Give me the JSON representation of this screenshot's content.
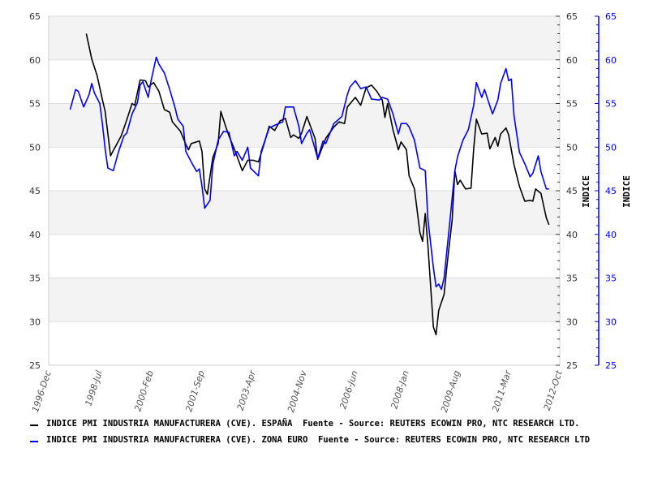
{
  "chart_data": {
    "type": "line",
    "x_ticks": [
      "1996-Dec",
      "1998-Jul",
      "2000-Feb",
      "2001-Sep",
      "2003-Apr",
      "2004-Nov",
      "2006-Jun",
      "2008-Jan",
      "2009-Aug",
      "2011-Mar",
      "2012-Oct"
    ],
    "xlim": [
      "1996-12",
      "2012-10"
    ],
    "ylim": [
      25,
      65
    ],
    "y_ticks": [
      25,
      30,
      35,
      40,
      45,
      50,
      55,
      60,
      65
    ],
    "ylabel_left_axis": "INDICE",
    "ylabel_right_axis": "INDICE",
    "grid": true,
    "legend_position": "bottom",
    "series": [
      {
        "name": "INDICE PMI INDUSTRIA MANUFACTURERA (CVE). ESPAÑA  Fuente - Source: REUTERS ECOWIN PRO, NTC RESEARCH LTD.",
        "color": "#000000",
        "axis": "left",
        "points": [
          [
            "1998-02",
            63.0
          ],
          [
            "1998-04",
            60.1
          ],
          [
            "1998-06",
            58.2
          ],
          [
            "1998-08",
            55.4
          ],
          [
            "1998-09",
            54.1
          ],
          [
            "1998-11",
            49.0
          ],
          [
            "1998-12",
            49.6
          ],
          [
            "1999-03",
            51.3
          ],
          [
            "1999-05",
            53.1
          ],
          [
            "1999-07",
            55.0
          ],
          [
            "1999-08",
            54.8
          ],
          [
            "1999-10",
            57.7
          ],
          [
            "1999-12",
            57.6
          ],
          [
            "2000-01",
            56.9
          ],
          [
            "2000-03",
            57.4
          ],
          [
            "2000-05",
            56.4
          ],
          [
            "2000-07",
            54.3
          ],
          [
            "2000-09",
            54.0
          ],
          [
            "2000-10",
            52.9
          ],
          [
            "2001-01",
            51.8
          ],
          [
            "2001-03",
            50.3
          ],
          [
            "2001-04",
            49.7
          ],
          [
            "2001-05",
            50.4
          ],
          [
            "2001-08",
            50.7
          ],
          [
            "2001-09",
            49.5
          ],
          [
            "2001-10",
            45.2
          ],
          [
            "2001-11",
            44.6
          ],
          [
            "2002-01",
            48.8
          ],
          [
            "2002-03",
            50.4
          ],
          [
            "2002-04",
            54.1
          ],
          [
            "2002-06",
            52.2
          ],
          [
            "2002-07",
            51.3
          ],
          [
            "2002-09",
            49.8
          ],
          [
            "2002-12",
            47.3
          ],
          [
            "2003-02",
            48.5
          ],
          [
            "2003-04",
            48.5
          ],
          [
            "2003-06",
            48.3
          ],
          [
            "2003-08",
            50.3
          ],
          [
            "2003-10",
            52.4
          ],
          [
            "2003-12",
            51.9
          ],
          [
            "2004-02",
            53.0
          ],
          [
            "2004-04",
            53.3
          ],
          [
            "2004-06",
            51.1
          ],
          [
            "2004-07",
            51.4
          ],
          [
            "2004-09",
            51.0
          ],
          [
            "2004-10",
            51.6
          ],
          [
            "2004-12",
            53.5
          ],
          [
            "2005-03",
            51.0
          ],
          [
            "2005-04",
            48.6
          ],
          [
            "2005-07",
            51.0
          ],
          [
            "2005-10",
            52.3
          ],
          [
            "2005-12",
            52.9
          ],
          [
            "2006-02",
            52.7
          ],
          [
            "2006-03",
            54.6
          ],
          [
            "2006-06",
            55.7
          ],
          [
            "2006-08",
            54.8
          ],
          [
            "2006-10",
            56.8
          ],
          [
            "2006-12",
            57.1
          ],
          [
            "2007-02",
            56.4
          ],
          [
            "2007-04",
            55.4
          ],
          [
            "2007-05",
            53.4
          ],
          [
            "2007-06",
            55.0
          ],
          [
            "2007-08",
            52.0
          ],
          [
            "2007-10",
            49.7
          ],
          [
            "2007-11",
            50.6
          ],
          [
            "2008-01",
            49.7
          ],
          [
            "2008-02",
            46.7
          ],
          [
            "2008-04",
            45.2
          ],
          [
            "2008-06",
            40.2
          ],
          [
            "2008-07",
            39.2
          ],
          [
            "2008-08",
            42.4
          ],
          [
            "2008-09",
            38.7
          ],
          [
            "2008-11",
            29.4
          ],
          [
            "2008-12",
            28.5
          ],
          [
            "2009-01",
            31.3
          ],
          [
            "2009-03",
            33.1
          ],
          [
            "2009-04",
            36.2
          ],
          [
            "2009-06",
            41.7
          ],
          [
            "2009-07",
            47.3
          ],
          [
            "2009-08",
            45.7
          ],
          [
            "2009-09",
            46.2
          ],
          [
            "2009-11",
            45.2
          ],
          [
            "2010-01",
            45.3
          ],
          [
            "2010-02",
            49.8
          ],
          [
            "2010-03",
            53.2
          ],
          [
            "2010-05",
            51.5
          ],
          [
            "2010-07",
            51.6
          ],
          [
            "2010-08",
            49.8
          ],
          [
            "2010-10",
            51.1
          ],
          [
            "2010-11",
            50.1
          ],
          [
            "2010-12",
            51.5
          ],
          [
            "2011-02",
            52.2
          ],
          [
            "2011-03",
            51.4
          ],
          [
            "2011-05",
            48.0
          ],
          [
            "2011-07",
            45.5
          ],
          [
            "2011-09",
            43.8
          ],
          [
            "2011-11",
            43.9
          ],
          [
            "2011-12",
            43.8
          ],
          [
            "2012-01",
            45.2
          ],
          [
            "2012-03",
            44.7
          ],
          [
            "2012-04",
            43.3
          ],
          [
            "2012-05",
            41.9
          ],
          [
            "2012-06",
            41.1
          ]
        ]
      },
      {
        "name": "INDICE PMI INDUSTRIA MANUFACTURERA (CVE). ZONA EURO  Fuente - Source: REUTERS ECOWIN PRO, NTC RESEARCH LTD",
        "color": "#0000ff",
        "axis": "right",
        "points": [
          [
            "1997-08",
            54.3
          ],
          [
            "1997-10",
            56.6
          ],
          [
            "1997-11",
            56.4
          ],
          [
            "1998-01",
            54.6
          ],
          [
            "1998-03",
            56.0
          ],
          [
            "1998-04",
            57.3
          ],
          [
            "1998-05",
            56.2
          ],
          [
            "1998-07",
            55.0
          ],
          [
            "1998-08",
            52.6
          ],
          [
            "1998-09",
            49.8
          ],
          [
            "1998-10",
            47.6
          ],
          [
            "1998-12",
            47.3
          ],
          [
            "1999-02",
            49.5
          ],
          [
            "1999-04",
            51.3
          ],
          [
            "1999-05",
            51.6
          ],
          [
            "1999-07",
            53.8
          ],
          [
            "1999-09",
            55.1
          ],
          [
            "1999-10",
            57.1
          ],
          [
            "1999-11",
            57.5
          ],
          [
            "2000-01",
            55.7
          ],
          [
            "2000-02",
            57.5
          ],
          [
            "2000-04",
            60.3
          ],
          [
            "2000-05",
            59.5
          ],
          [
            "2000-07",
            58.5
          ],
          [
            "2000-09",
            56.6
          ],
          [
            "2000-11",
            54.5
          ],
          [
            "2000-12",
            53.2
          ],
          [
            "2001-02",
            52.4
          ],
          [
            "2001-03",
            49.5
          ],
          [
            "2001-05",
            48.3
          ],
          [
            "2001-07",
            47.2
          ],
          [
            "2001-08",
            47.5
          ],
          [
            "2001-09",
            45.5
          ],
          [
            "2001-10",
            43.0
          ],
          [
            "2001-12",
            43.9
          ],
          [
            "2002-01",
            48.0
          ],
          [
            "2002-03",
            50.8
          ],
          [
            "2002-05",
            51.8
          ],
          [
            "2002-07",
            51.7
          ],
          [
            "2002-09",
            49.0
          ],
          [
            "2002-10",
            49.5
          ],
          [
            "2002-12",
            48.5
          ],
          [
            "2003-02",
            50.0
          ],
          [
            "2003-03",
            47.6
          ],
          [
            "2003-06",
            46.7
          ],
          [
            "2003-07",
            49.5
          ],
          [
            "2003-10",
            52.2
          ],
          [
            "2003-12",
            52.5
          ],
          [
            "2004-03",
            52.9
          ],
          [
            "2004-04",
            54.6
          ],
          [
            "2004-06",
            54.6
          ],
          [
            "2004-07",
            54.6
          ],
          [
            "2004-09",
            52.4
          ],
          [
            "2004-10",
            50.4
          ],
          [
            "2004-12",
            51.6
          ],
          [
            "2005-01",
            52.0
          ],
          [
            "2005-04",
            48.7
          ],
          [
            "2005-06",
            50.7
          ],
          [
            "2005-07",
            50.4
          ],
          [
            "2005-10",
            52.7
          ],
          [
            "2006-01",
            53.5
          ],
          [
            "2006-03",
            56.0
          ],
          [
            "2006-04",
            56.9
          ],
          [
            "2006-06",
            57.6
          ],
          [
            "2006-08",
            56.7
          ],
          [
            "2006-10",
            56.9
          ],
          [
            "2006-12",
            55.5
          ],
          [
            "2007-03",
            55.4
          ],
          [
            "2007-04",
            55.7
          ],
          [
            "2007-06",
            55.5
          ],
          [
            "2007-08",
            53.8
          ],
          [
            "2007-10",
            51.5
          ],
          [
            "2007-11",
            52.7
          ],
          [
            "2008-01",
            52.7
          ],
          [
            "2008-02",
            52.3
          ],
          [
            "2008-04",
            50.8
          ],
          [
            "2008-06",
            47.6
          ],
          [
            "2008-08",
            47.3
          ],
          [
            "2008-09",
            41.7
          ],
          [
            "2008-11",
            36.2
          ],
          [
            "2008-12",
            34.0
          ],
          [
            "2009-01",
            34.3
          ],
          [
            "2009-02",
            33.7
          ],
          [
            "2009-03",
            35.0
          ],
          [
            "2009-05",
            41.1
          ],
          [
            "2009-07",
            47.3
          ],
          [
            "2009-08",
            48.9
          ],
          [
            "2009-10",
            50.8
          ],
          [
            "2009-12",
            52.0
          ],
          [
            "2010-02",
            54.8
          ],
          [
            "2010-03",
            57.4
          ],
          [
            "2010-05",
            55.7
          ],
          [
            "2010-06",
            56.6
          ],
          [
            "2010-09",
            53.8
          ],
          [
            "2010-11",
            55.4
          ],
          [
            "2010-12",
            57.3
          ],
          [
            "2011-02",
            59.0
          ],
          [
            "2011-03",
            57.6
          ],
          [
            "2011-04",
            57.8
          ],
          [
            "2011-05",
            53.6
          ],
          [
            "2011-07",
            49.4
          ],
          [
            "2011-09",
            48.1
          ],
          [
            "2011-11",
            46.6
          ],
          [
            "2011-12",
            47.0
          ],
          [
            "2012-02",
            49.0
          ],
          [
            "2012-03",
            47.2
          ],
          [
            "2012-05",
            45.2
          ],
          [
            "2012-06",
            45.2
          ]
        ]
      }
    ]
  }
}
